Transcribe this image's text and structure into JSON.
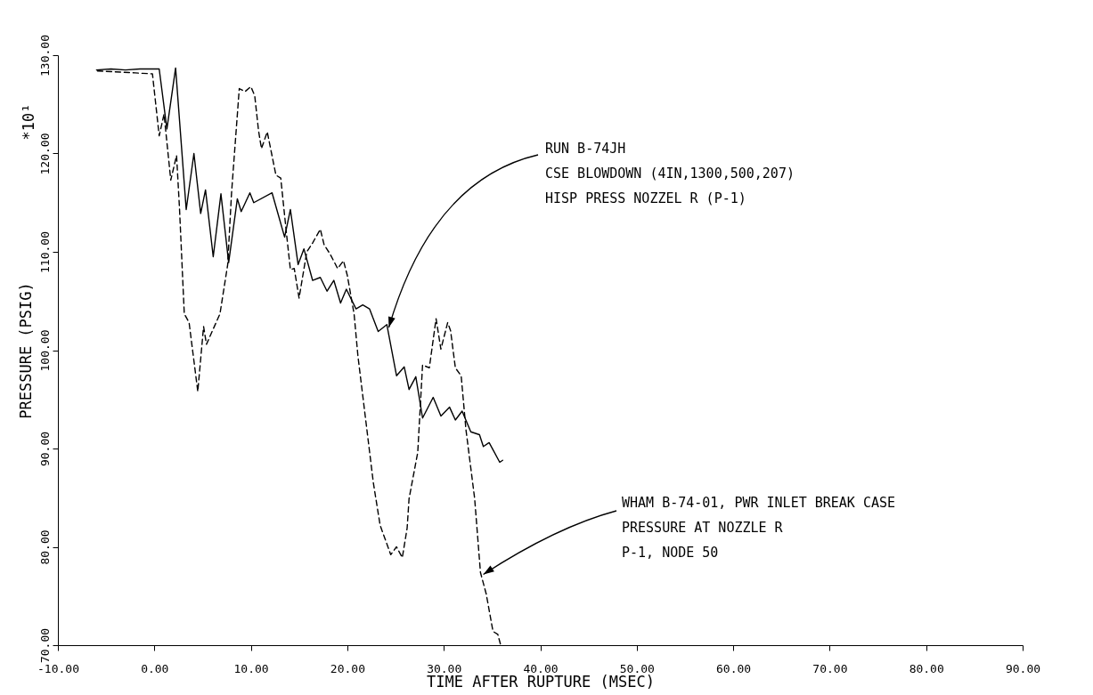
{
  "chart_data": {
    "type": "line",
    "xlabel": "TIME AFTER RUPTURE (MSEC)",
    "ylabel": "PRESSURE (PSIG)",
    "xlim": [
      -10,
      90
    ],
    "xticks": [
      {
        "value": -10,
        "label": "-10.00"
      },
      {
        "value": 0,
        "label": "0.00"
      },
      {
        "value": 10,
        "label": "10.00"
      },
      {
        "value": 20,
        "label": "20.00"
      },
      {
        "value": 30,
        "label": "30.00"
      },
      {
        "value": 40,
        "label": "40.00"
      },
      {
        "value": 50,
        "label": "50.00"
      },
      {
        "value": 60,
        "label": "60.00"
      },
      {
        "value": 70,
        "label": "70.00"
      },
      {
        "value": 80,
        "label": "80.00"
      },
      {
        "value": 90,
        "label": "90.00"
      }
    ],
    "ylim": [
      70,
      130
    ],
    "yticks": [
      {
        "value": 70,
        "label": "70.00"
      },
      {
        "value": 80,
        "label": "80.00"
      },
      {
        "value": 90,
        "label": "90.00"
      },
      {
        "value": 100,
        "label": "100.00"
      },
      {
        "value": 110,
        "label": "110.00"
      },
      {
        "value": 120,
        "label": "120.00"
      },
      {
        "value": 130,
        "label": "130.00"
      }
    ],
    "grid": false,
    "series": [
      {
        "color": "#000000",
        "line_style": "solid",
        "x": [
          -6.0,
          -4.5,
          -3.0,
          -1.5,
          0.5,
          1.3,
          2.2,
          3.3,
          4.1,
          4.8,
          5.3,
          6.1,
          6.9,
          7.7,
          8.6,
          9.0,
          9.9,
          10.3,
          12.2,
          13.5,
          14.1,
          14.9,
          15.5,
          16.4,
          17.2,
          17.9,
          18.6,
          19.3,
          19.9,
          20.9,
          21.6,
          22.3,
          23.2,
          24.1,
          25.1,
          25.9,
          26.4,
          27.1,
          27.8,
          28.9,
          29.7,
          30.6,
          31.2,
          31.9,
          32.8,
          33.7,
          34.1,
          34.7,
          35.8,
          36.1
        ],
        "values": [
          128.5,
          128.6,
          128.5,
          128.6,
          128.6,
          122.5,
          128.7,
          114.3,
          120.0,
          113.9,
          116.3,
          109.5,
          115.9,
          108.9,
          115.4,
          114.1,
          116.0,
          115.0,
          116.0,
          111.5,
          114.3,
          108.7,
          110.3,
          107.1,
          107.4,
          106.0,
          107.1,
          104.8,
          106.2,
          104.2,
          104.6,
          104.2,
          101.9,
          102.6,
          97.4,
          98.3,
          96.0,
          97.3,
          93.1,
          95.2,
          93.3,
          94.2,
          92.9,
          93.8,
          91.7,
          91.4,
          90.2,
          90.6,
          88.6,
          88.8
        ]
      },
      {
        "color": "#000000",
        "line_style": "dashed",
        "x": [
          -5.9,
          -2.0,
          -0.2,
          0.5,
          1.0,
          1.7,
          2.3,
          2.6,
          3.1,
          3.6,
          4.5,
          5.1,
          5.4,
          6.8,
          7.6,
          8.0,
          8.8,
          9.4,
          10.0,
          10.4,
          10.8,
          11.1,
          11.7,
          12.6,
          13.1,
          13.7,
          14.1,
          14.5,
          15.0,
          15.8,
          16.4,
          17.2,
          17.6,
          18.2,
          19.0,
          19.6,
          20.0,
          20.7,
          21.1,
          22.7,
          23.4,
          24.5,
          25.1,
          25.7,
          26.2,
          26.4,
          27.3,
          27.8,
          28.5,
          29.2,
          29.7,
          30.4,
          30.7,
          31.2,
          31.8,
          32.3,
          33.2,
          33.8,
          34.4,
          35.1,
          35.6,
          35.9
        ],
        "values": [
          128.4,
          128.2,
          128.1,
          121.8,
          124.0,
          117.3,
          119.8,
          114.5,
          103.7,
          102.8,
          95.8,
          102.4,
          100.6,
          103.7,
          108.7,
          116.0,
          126.6,
          126.3,
          126.8,
          125.9,
          122.3,
          120.5,
          122.2,
          117.8,
          117.5,
          111.8,
          108.2,
          108.3,
          105.3,
          110.0,
          110.9,
          112.3,
          110.7,
          109.8,
          108.3,
          109.1,
          107.6,
          103.7,
          99.4,
          86.5,
          82.2,
          79.2,
          80.0,
          78.9,
          81.9,
          84.9,
          89.6,
          98.5,
          98.2,
          103.2,
          100.1,
          102.8,
          102.0,
          98.2,
          97.4,
          91.9,
          84.9,
          77.4,
          75.2,
          71.4,
          71.1,
          70.0
        ]
      }
    ],
    "annotations": [
      "*10¹",
      {
        "text": "RUN   B-74JH\nCSE BLOWDOWN (4IN,1300,500,207)\nHISP PRESS NOZZEL R  (P-1)",
        "x": 24.3,
        "y": 102.3
      },
      {
        "text": "WHAM B-74-01, PWR INLET BREAK CASE\nPRESSURE AT NOZZLE R\nP-1, NODE 50",
        "x": 34.1,
        "y": 77.2
      }
    ]
  }
}
